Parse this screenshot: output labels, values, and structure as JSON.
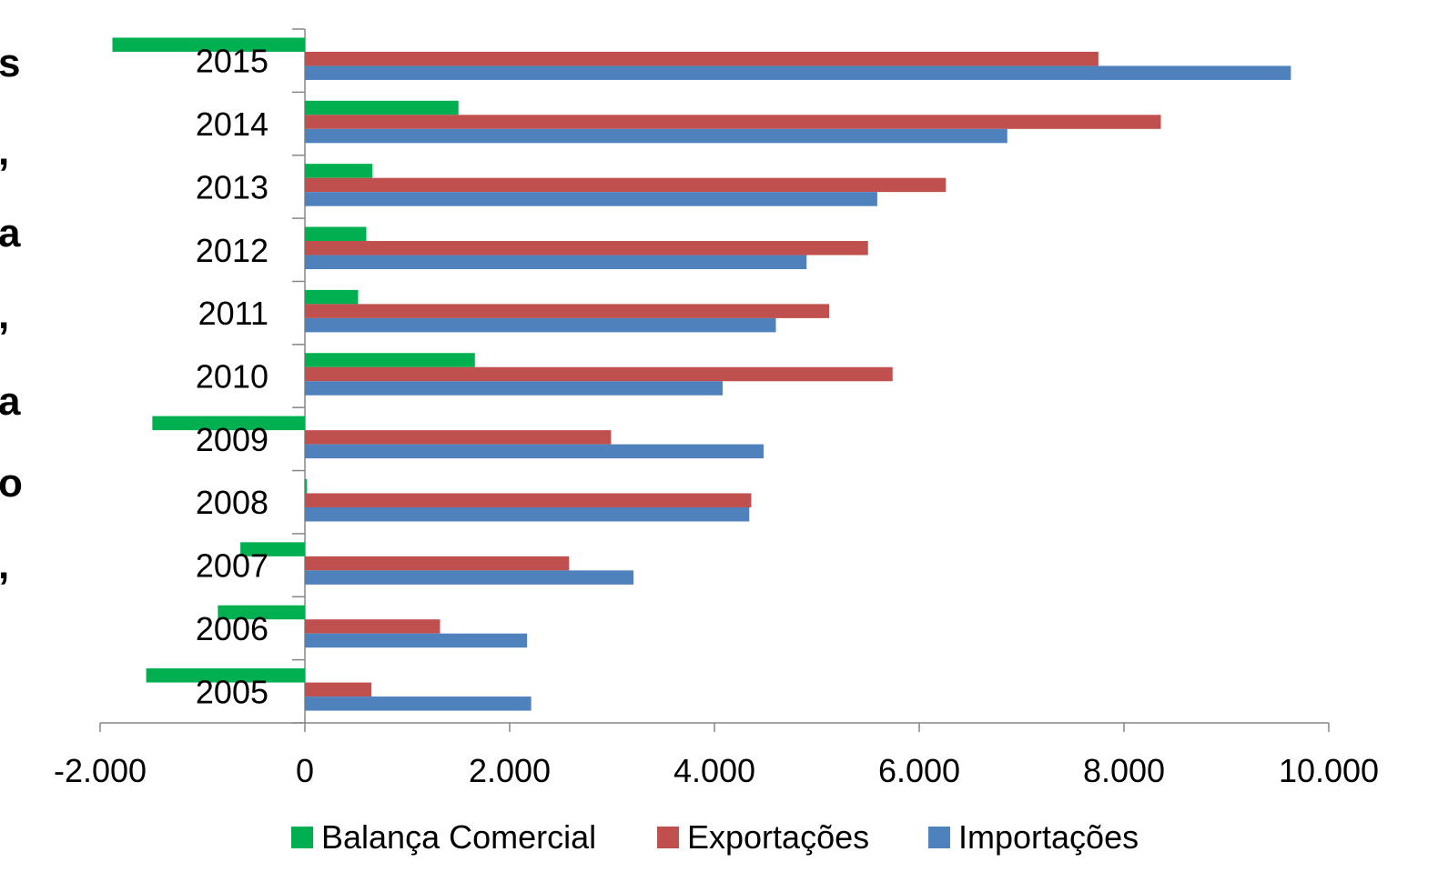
{
  "side_text": [
    "s",
    ",",
    "a",
    ",",
    "a",
    "o",
    ","
  ],
  "chart_data": {
    "type": "bar",
    "orientation": "horizontal",
    "categories": [
      "2005",
      "2006",
      "2007",
      "2008",
      "2009",
      "2010",
      "2011",
      "2012",
      "2013",
      "2014",
      "2015"
    ],
    "series": [
      {
        "name": "Balança Comercial",
        "color": "#00B050",
        "values": [
          -1550,
          -850,
          -630,
          20,
          -1490,
          1660,
          520,
          600,
          660,
          1500,
          -1880
        ]
      },
      {
        "name": "Exportações",
        "color": "#C0504D",
        "values": [
          650,
          1320,
          2580,
          4360,
          2990,
          5740,
          5120,
          5500,
          6260,
          8360,
          7750
        ]
      },
      {
        "name": "Importações",
        "color": "#4F81BD",
        "values": [
          2210,
          2170,
          3210,
          4340,
          4480,
          4080,
          4600,
          4900,
          5590,
          6860,
          9630
        ]
      }
    ],
    "xticks": [
      "-2.000",
      "0",
      "2.000",
      "4.000",
      "6.000",
      "8.000",
      "10.000"
    ],
    "xlim": [
      -2000,
      10000
    ],
    "grid": false,
    "legend_position": "bottom"
  }
}
